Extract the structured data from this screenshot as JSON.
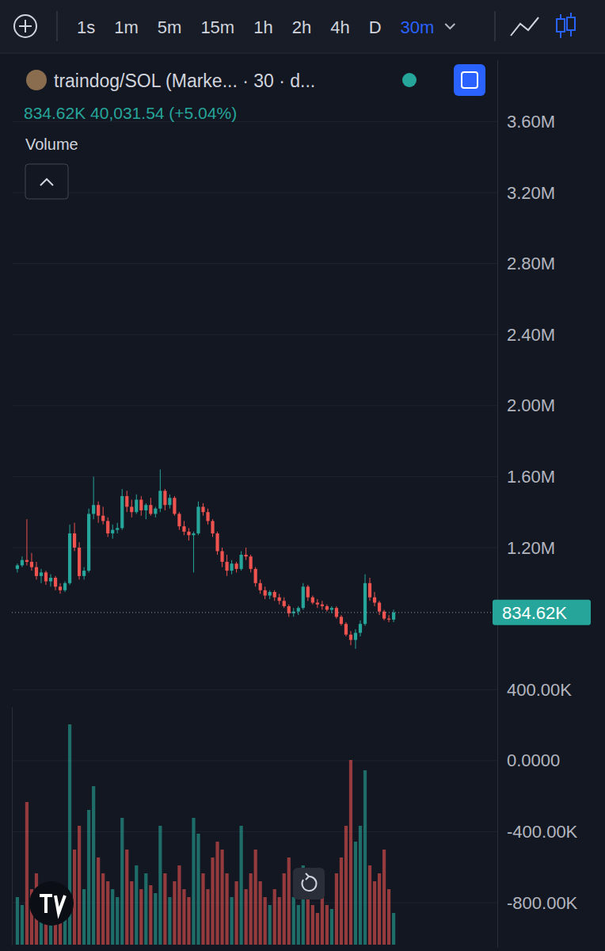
{
  "toolbar": {
    "intervals": [
      "1s",
      "1m",
      "5m",
      "15m",
      "1h",
      "2h",
      "4h",
      "D"
    ],
    "selected": "30m"
  },
  "chart_data": {
    "type": "candlestick",
    "title": "traindog/SOL (Marke... · 30 · d...",
    "subtitle": "834.62K 40,031.54 (+5.04%)",
    "categories": [
      null,
      null,
      null,
      null,
      null,
      null,
      null,
      null,
      null,
      null,
      null,
      null,
      null,
      null,
      null,
      null,
      null,
      null,
      null,
      null,
      null,
      null,
      null,
      null,
      null,
      null,
      null,
      null,
      null,
      null,
      null,
      null,
      null,
      null,
      null,
      null,
      null,
      null,
      null,
      null,
      null,
      null,
      null,
      null,
      null,
      null,
      null,
      null,
      null,
      null,
      null,
      null,
      null,
      null,
      null,
      null,
      null,
      null,
      null,
      null,
      null,
      null,
      null,
      null,
      null,
      null,
      null,
      null,
      null,
      null,
      null,
      null,
      null,
      null,
      null,
      null,
      null,
      null,
      null,
      null
    ],
    "open": [
      1080000,
      1100000,
      1130000,
      1120000,
      1090000,
      1040000,
      1060000,
      1010000,
      1030000,
      980000,
      960000,
      1000000,
      1280000,
      1200000,
      1040000,
      1070000,
      1390000,
      1440000,
      1380000,
      1350000,
      1280000,
      1300000,
      1310000,
      1490000,
      1430000,
      1400000,
      1470000,
      1410000,
      1440000,
      1390000,
      1420000,
      1520000,
      1440000,
      1480000,
      1390000,
      1320000,
      1290000,
      1270000,
      1280000,
      1430000,
      1400000,
      1350000,
      1280000,
      1180000,
      1120000,
      1070000,
      1110000,
      1080000,
      1160000,
      1150000,
      1080000,
      1000000,
      960000,
      930000,
      950000,
      920000,
      900000,
      870000,
      830000,
      840000,
      860000,
      980000,
      920000,
      890000,
      880000,
      870000,
      850000,
      860000,
      810000,
      770000,
      710000,
      680000,
      720000,
      770000,
      1000000,
      920000,
      890000,
      840000,
      800000,
      794588
    ],
    "high": [
      1110000,
      1150000,
      1360000,
      1170000,
      1120000,
      1080000,
      1070000,
      1050000,
      1040000,
      1000000,
      1010000,
      1330000,
      1340000,
      1230000,
      1090000,
      1420000,
      1600000,
      1460000,
      1430000,
      1370000,
      1330000,
      1340000,
      1530000,
      1520000,
      1470000,
      1500000,
      1490000,
      1450000,
      1480000,
      1430000,
      1640000,
      1530000,
      1500000,
      1490000,
      1400000,
      1350000,
      1310000,
      1290000,
      1460000,
      1450000,
      1420000,
      1360000,
      1290000,
      1200000,
      1160000,
      1130000,
      1120000,
      1180000,
      1200000,
      1160000,
      1090000,
      1020000,
      980000,
      960000,
      960000,
      940000,
      920000,
      880000,
      860000,
      870000,
      1000000,
      990000,
      930000,
      910000,
      900000,
      880000,
      870000,
      870000,
      820000,
      780000,
      730000,
      740000,
      790000,
      1050000,
      1030000,
      950000,
      900000,
      850000,
      820000,
      850000
    ],
    "low": [
      1060000,
      1090000,
      1100000,
      1070000,
      1020000,
      1000000,
      990000,
      980000,
      960000,
      940000,
      950000,
      990000,
      1180000,
      1020000,
      1020000,
      1060000,
      1360000,
      1340000,
      1330000,
      1260000,
      1250000,
      1280000,
      1300000,
      1400000,
      1370000,
      1390000,
      1380000,
      1360000,
      1380000,
      1370000,
      1400000,
      1410000,
      1420000,
      1380000,
      1300000,
      1270000,
      1240000,
      1060000,
      1270000,
      1380000,
      1330000,
      1260000,
      1160000,
      1090000,
      1040000,
      1050000,
      1060000,
      1070000,
      1130000,
      1060000,
      980000,
      940000,
      910000,
      910000,
      900000,
      880000,
      860000,
      810000,
      810000,
      820000,
      850000,
      900000,
      880000,
      860000,
      850000,
      840000,
      830000,
      800000,
      760000,
      700000,
      650000,
      630000,
      700000,
      760000,
      900000,
      870000,
      820000,
      790000,
      780000,
      780000
    ],
    "close": [
      1100000,
      1130000,
      1120000,
      1090000,
      1040000,
      1060000,
      1010000,
      1030000,
      980000,
      960000,
      1000000,
      1280000,
      1200000,
      1040000,
      1070000,
      1390000,
      1440000,
      1380000,
      1350000,
      1280000,
      1300000,
      1310000,
      1490000,
      1430000,
      1400000,
      1470000,
      1410000,
      1440000,
      1390000,
      1420000,
      1520000,
      1440000,
      1480000,
      1390000,
      1320000,
      1290000,
      1270000,
      1280000,
      1430000,
      1400000,
      1350000,
      1280000,
      1180000,
      1120000,
      1070000,
      1110000,
      1080000,
      1160000,
      1150000,
      1080000,
      1000000,
      960000,
      930000,
      950000,
      920000,
      900000,
      870000,
      830000,
      840000,
      860000,
      980000,
      920000,
      890000,
      880000,
      870000,
      850000,
      860000,
      810000,
      770000,
      710000,
      680000,
      720000,
      770000,
      1000000,
      920000,
      890000,
      840000,
      800000,
      794588,
      834620
    ],
    "series": [
      {
        "name": "Volume",
        "type": "bar",
        "axis": "y2",
        "values": [
          60,
          50,
          180,
          70,
          90,
          60,
          55,
          75,
          60,
          50,
          40,
          278,
          120,
          150,
          70,
          170,
          200,
          110,
          90,
          80,
          70,
          60,
          160,
          120,
          80,
          100,
          70,
          90,
          75,
          65,
          150,
          90,
          60,
          80,
          100,
          70,
          60,
          160,
          140,
          90,
          70,
          110,
          130,
          120,
          90,
          60,
          80,
          150,
          70,
          90,
          120,
          80,
          60,
          50,
          70,
          60,
          90,
          110,
          60,
          50,
          100,
          60,
          50,
          40,
          60,
          50,
          45,
          90,
          110,
          150,
          233,
          130,
          150,
          220,
          100,
          80,
          90,
          120,
          70,
          40
        ]
      }
    ],
    "ylim": [
      -1050000,
      3950000
    ],
    "yticks": [
      {
        "value": -800000,
        "label": "-800.00K"
      },
      {
        "value": -400000,
        "label": "-400.00K"
      },
      {
        "value": 0,
        "label": "0.0000"
      },
      {
        "value": 400000,
        "label": "400.00K"
      },
      {
        "value": 1200000,
        "label": "1.20M"
      },
      {
        "value": 1600000,
        "label": "1.60M"
      },
      {
        "value": 2000000,
        "label": "2.00M"
      },
      {
        "value": 2400000,
        "label": "2.40M"
      },
      {
        "value": 2800000,
        "label": "2.80M"
      },
      {
        "value": 3200000,
        "label": "3.20M"
      },
      {
        "value": 3600000,
        "label": "3.60M"
      }
    ],
    "y2lim": [
      0,
      300
    ],
    "price_line": {
      "value": 834620,
      "label": "834.62K"
    },
    "grid": true,
    "tick_labels": "y"
  }
}
